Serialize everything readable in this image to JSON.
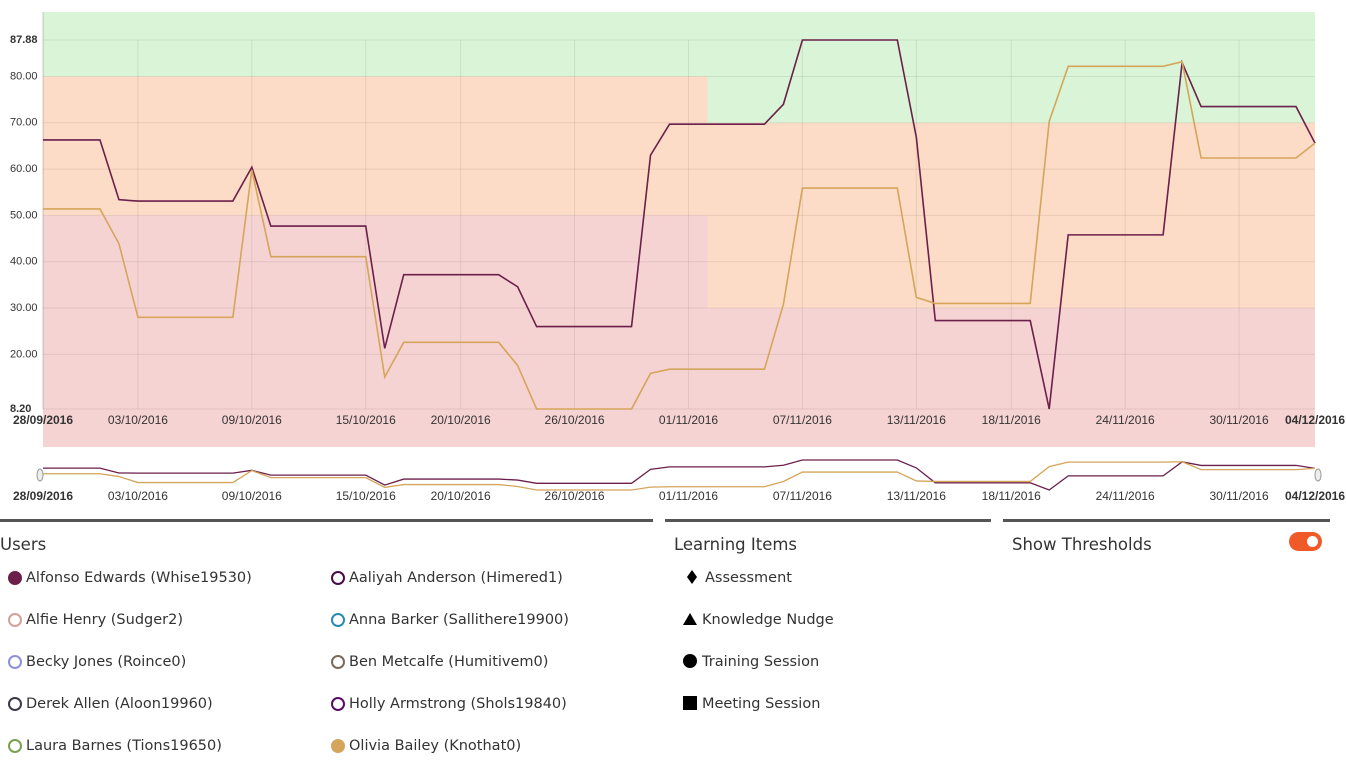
{
  "chart_data": {
    "type": "line",
    "x": [
      "28/09/2016",
      "01/10/2016",
      "02/10/2016",
      "03/10/2016",
      "08/10/2016",
      "09/10/2016",
      "10/10/2016",
      "15/10/2016",
      "16/10/2016",
      "17/10/2016",
      "22/10/2016",
      "23/10/2016",
      "24/10/2016",
      "29/10/2016",
      "30/10/2016",
      "31/10/2016",
      "05/11/2016",
      "06/11/2016",
      "07/11/2016",
      "12/11/2016",
      "13/11/2016",
      "14/11/2016",
      "19/11/2016",
      "20/11/2016",
      "21/11/2016",
      "26/11/2016",
      "27/11/2016",
      "28/11/2016",
      "03/12/2016",
      "04/12/2016"
    ],
    "xlim": [
      "28/09/2016",
      "04/12/2016"
    ],
    "xticks": [
      "28/09/2016",
      "03/10/2016",
      "09/10/2016",
      "15/10/2016",
      "20/10/2016",
      "26/10/2016",
      "01/11/2016",
      "07/11/2016",
      "13/11/2016",
      "18/11/2016",
      "24/11/2016",
      "30/11/2016",
      "04/12/2016"
    ],
    "ylim": [
      8.2,
      87.88
    ],
    "yticks": [
      {
        "value": 8.2,
        "label": "8.20"
      },
      {
        "value": 20,
        "label": "20.00"
      },
      {
        "value": 30,
        "label": "30.00"
      },
      {
        "value": 40,
        "label": "40.00"
      },
      {
        "value": 50,
        "label": "50.00"
      },
      {
        "value": 60,
        "label": "60.00"
      },
      {
        "value": 70,
        "label": "70.00"
      },
      {
        "value": 80,
        "label": "80.00"
      },
      87.88
    ],
    "grid": true,
    "series": [
      {
        "name": "Alfonso Edwards (Whise19530)",
        "color": "#6b1f4a",
        "values": [
          66.3,
          66.3,
          53.4,
          53.1,
          53.1,
          60.4,
          47.7,
          47.7,
          21.3,
          37.2,
          37.2,
          34.6,
          26.0,
          26.0,
          63.0,
          69.7,
          69.7,
          74.0,
          87.88,
          87.88,
          66.9,
          27.3,
          27.3,
          8.2,
          45.8,
          45.8,
          83.0,
          73.5,
          73.5,
          65.6
        ]
      },
      {
        "name": "Olivia Bailey (Knothat0)",
        "color": "#d4a55a",
        "values": [
          51.4,
          51.4,
          43.9,
          28.0,
          28.0,
          59.8,
          41.1,
          41.1,
          15.1,
          22.6,
          22.6,
          17.6,
          8.2,
          8.2,
          15.9,
          16.8,
          16.8,
          30.8,
          55.9,
          55.9,
          32.3,
          31.0,
          31.0,
          70.3,
          82.2,
          82.2,
          83.2,
          62.4,
          62.4,
          65.6
        ]
      }
    ],
    "thresholds": [
      {
        "from": "28/09/2016",
        "to": "02/11/2016",
        "low": 50,
        "high": 80
      },
      {
        "from": "02/11/2016",
        "to": "04/12/2016",
        "low": 30,
        "high": 70
      }
    ],
    "threshold_colors": {
      "below": "#f6d3d3",
      "between": "#fcdcc6",
      "above": "#d9f4d6"
    },
    "navigator": true
  },
  "users": {
    "title": "Users",
    "others": [
      {
        "name": "Aaliyah Anderson (Himered1)",
        "color": "#4a0a4a"
      },
      {
        "name": "Alfie Henry (Sudger2)",
        "color": "#d4a09a"
      },
      {
        "name": "Anna Barker (Sallithere19900)",
        "color": "#2a8ab0"
      },
      {
        "name": "Becky Jones (Roince0)",
        "color": "#8f8fd8"
      },
      {
        "name": "Ben Metcalfe (Humitivem0)",
        "color": "#7a6a5a"
      },
      {
        "name": "Derek Allen (Aloon19960)",
        "color": "#3a3a4a"
      },
      {
        "name": "Holly Armstrong (Shols19840)",
        "color": "#5a0a6a"
      },
      {
        "name": "Laura Barnes (Tions19650)",
        "color": "#7aa050"
      }
    ]
  },
  "learning_items": {
    "title": "Learning Items",
    "items": [
      "Assessment",
      "Knowledge Nudge",
      "Training Session",
      "Meeting Session"
    ]
  },
  "show_thresholds": {
    "label": "Show Thresholds",
    "on": true
  }
}
